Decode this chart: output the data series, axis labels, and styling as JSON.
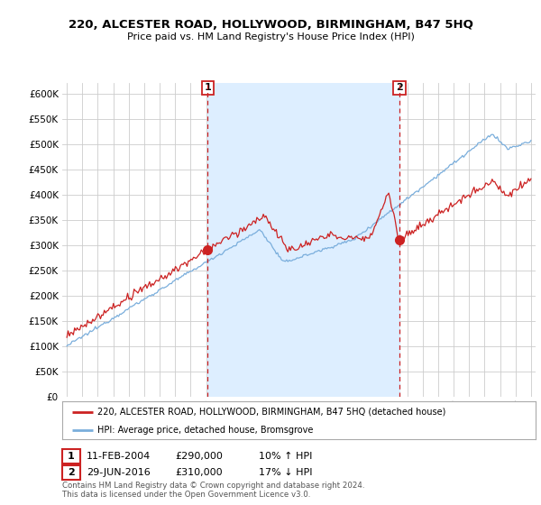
{
  "title": "220, ALCESTER ROAD, HOLLYWOOD, BIRMINGHAM, B47 5HQ",
  "subtitle": "Price paid vs. HM Land Registry's House Price Index (HPI)",
  "red_label": "220, ALCESTER ROAD, HOLLYWOOD, BIRMINGHAM, B47 5HQ (detached house)",
  "blue_label": "HPI: Average price, detached house, Bromsgrove",
  "point1_date": "11-FEB-2004",
  "point1_price": "£290,000",
  "point1_hpi": "10% ↑ HPI",
  "point1_year": 2004.1,
  "point1_value": 290000,
  "point2_date": "29-JUN-2016",
  "point2_price": "£310,000",
  "point2_hpi": "17% ↓ HPI",
  "point2_year": 2016.5,
  "point2_value": 310000,
  "ylim": [
    0,
    620000
  ],
  "yticks": [
    0,
    50000,
    100000,
    150000,
    200000,
    250000,
    300000,
    350000,
    400000,
    450000,
    500000,
    550000,
    600000
  ],
  "xlim_left": 1994.7,
  "xlim_right": 2025.3,
  "footer": "Contains HM Land Registry data © Crown copyright and database right 2024.\nThis data is licensed under the Open Government Licence v3.0.",
  "background_color": "#ffffff",
  "grid_color": "#cccccc",
  "red_color": "#cc2222",
  "blue_color": "#7aaedc",
  "shade_color": "#ddeeff"
}
